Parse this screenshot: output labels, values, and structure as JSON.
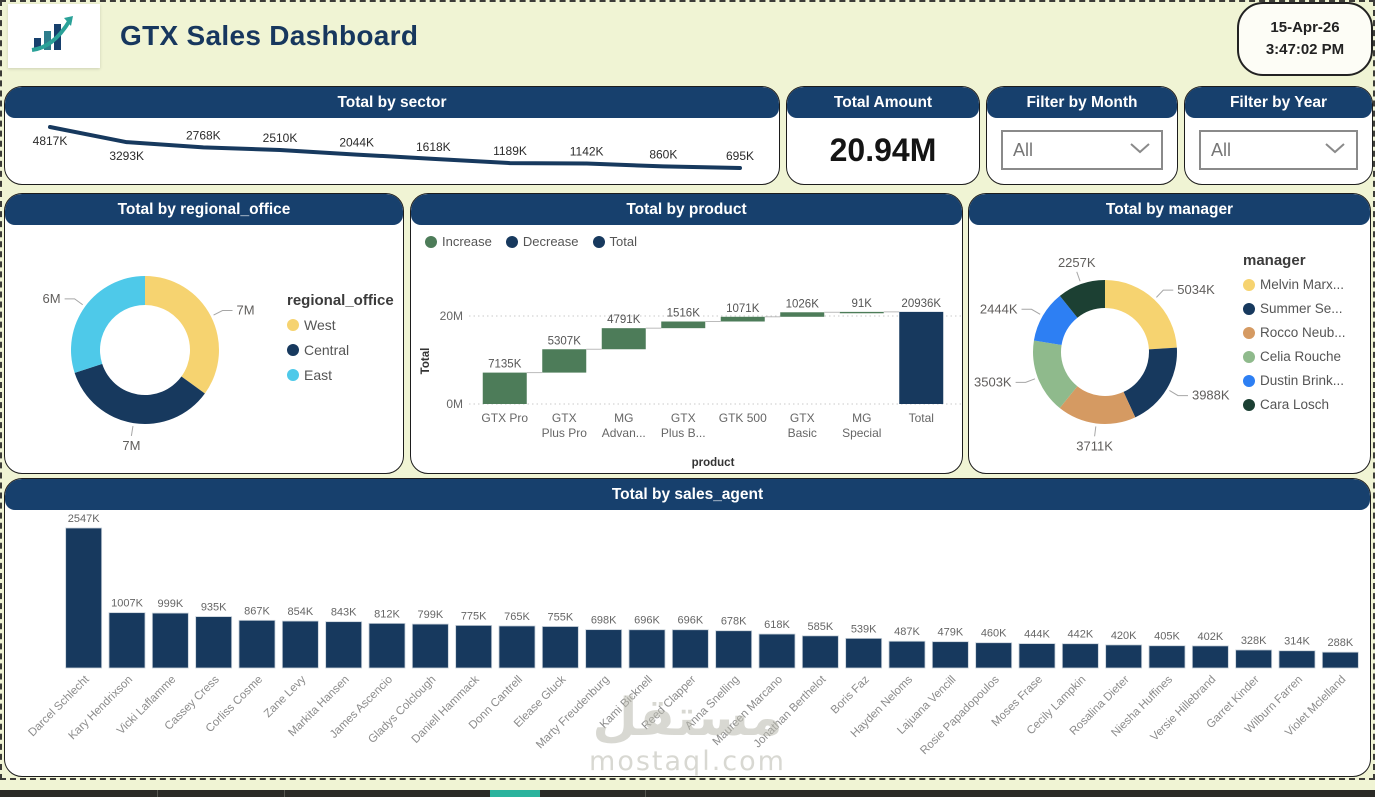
{
  "header": {
    "title": "GTX Sales Dashboard",
    "logo_icon": "trending-bar-chart-icon",
    "date": "15-Apr-26",
    "time": "3:47:02 PM"
  },
  "colors": {
    "page_bg": "#f0f4d4",
    "card_header_navy": "#17406d",
    "series_navy": "#17395e",
    "increase_green": "#4d7c59",
    "west_yellow": "#f6d370",
    "east_cyan": "#4ec9e9",
    "rocco_tan": "#d59a62",
    "celia_green": "#8fba8c",
    "dustin_blue": "#2d7ff3",
    "cara_darkgreen": "#1c4033",
    "taskbar_teal": "#2ab39d"
  },
  "cards": {
    "sector": {
      "title": "Total by sector"
    },
    "amount": {
      "title": "Total Amount",
      "value": "20.94M"
    },
    "month": {
      "title": "Filter by Month",
      "selected": "All"
    },
    "year": {
      "title": "Filter by Year",
      "selected": "All"
    },
    "regional": {
      "title": "Total by regional_office"
    },
    "product": {
      "title": "Total by product"
    },
    "manager": {
      "title": "Total by manager"
    },
    "agent": {
      "title": "Total by sales_agent"
    }
  },
  "watermark": {
    "arabic": "مستقل",
    "domain": "mostaql.com"
  },
  "chart_data": [
    {
      "id": "sector",
      "type": "line",
      "title": "Total by sector",
      "values": [
        4817,
        3293,
        2768,
        2510,
        2044,
        1618,
        1189,
        1142,
        860,
        695
      ],
      "labels": [
        "4817K",
        "3293K",
        "2768K",
        "2510K",
        "2044K",
        "1618K",
        "1189K",
        "1142K",
        "860K",
        "695K"
      ],
      "line_color": "#17395e",
      "grid": false,
      "axes_hidden": true
    },
    {
      "id": "regional",
      "type": "donut",
      "title": "Total by regional_office",
      "legend_title": "regional_office",
      "legend_position": "right",
      "segments": [
        {
          "label": "West",
          "value": 7,
          "display": "7M",
          "color": "#f6d370"
        },
        {
          "label": "Central",
          "value": 7,
          "display": "7M",
          "color": "#17395e"
        },
        {
          "label": "East",
          "value": 6,
          "display": "6M",
          "color": "#4ec9e9"
        }
      ]
    },
    {
      "id": "product",
      "type": "waterfall",
      "title": "Total by product",
      "legend": [
        {
          "label": "Increase",
          "color": "#4d7c59"
        },
        {
          "label": "Decrease",
          "color": "#17395e"
        },
        {
          "label": "Total",
          "color": "#17395e"
        }
      ],
      "categories": [
        [
          "GTX Pro"
        ],
        [
          "GTX",
          "Plus Pro"
        ],
        [
          "MG",
          "Advan..."
        ],
        [
          "GTX",
          "Plus B..."
        ],
        [
          "GTK 500"
        ],
        [
          "GTX",
          "Basic"
        ],
        [
          "MG",
          "Special"
        ],
        [
          "Total"
        ]
      ],
      "values": [
        7135,
        5307,
        4791,
        1516,
        1071,
        1026,
        91
      ],
      "total": 20936,
      "labels": [
        "7135K",
        "5307K",
        "4791K",
        "1516K",
        "1071K",
        "1026K",
        "91K",
        "20936K"
      ],
      "ylabel": "Total",
      "xlabel": "product",
      "yticks": [
        {
          "value": 0,
          "label": "0M"
        },
        {
          "value": 20000,
          "label": "20M"
        }
      ],
      "ylim": [
        0,
        22000
      ]
    },
    {
      "id": "manager",
      "type": "donut",
      "title": "Total by manager",
      "legend_title": "manager",
      "legend_position": "right",
      "segments": [
        {
          "label": "Melvin Marx...",
          "value": 5034,
          "display": "5034K",
          "color": "#f6d370"
        },
        {
          "label": "Summer Se...",
          "value": 3988,
          "display": "3988K",
          "color": "#17395e"
        },
        {
          "label": "Rocco Neub...",
          "value": 3711,
          "display": "3711K",
          "color": "#d59a62"
        },
        {
          "label": "Celia Rouche",
          "value": 3503,
          "display": "3503K",
          "color": "#8fba8c"
        },
        {
          "label": "Dustin Brink...",
          "value": 2444,
          "display": "2444K",
          "color": "#2d7ff3"
        },
        {
          "label": "Cara Losch",
          "value": 2257,
          "display": "2257K",
          "color": "#1c4033"
        }
      ]
    },
    {
      "id": "agent",
      "type": "bar",
      "title": "Total by sales_agent",
      "bar_color": "#17395e",
      "categories": [
        "Darcel Schlecht",
        "Kary Hendrixson",
        "Vicki Laflamme",
        "Cassey Cress",
        "Corliss Cosme",
        "Zane Levy",
        "Markita Hansen",
        "James Ascencio",
        "Gladys Colclough",
        "Daniell Hammack",
        "Donn Cantrell",
        "Elease Gluck",
        "Marty Freudenburg",
        "Kami Bicknell",
        "Reed Clapper",
        "Anna Snelling",
        "Maureen Marcano",
        "Jonathan Berthelot",
        "Boris Faz",
        "Hayden Neloms",
        "Lajuana Vencill",
        "Rosie Papadopoulos",
        "Moses Frase",
        "Cecily Lampkin",
        "Rosalina Dieter",
        "Niesha Huffines",
        "Versie Hillebrand",
        "Garret Kinder",
        "Wilburn Farren",
        "Violet Mclelland"
      ],
      "values": [
        2547,
        1007,
        999,
        935,
        867,
        854,
        843,
        812,
        799,
        775,
        765,
        755,
        698,
        696,
        696,
        678,
        618,
        585,
        539,
        487,
        479,
        460,
        444,
        442,
        420,
        405,
        402,
        328,
        314,
        288
      ],
      "labels": [
        "2547K",
        "1007K",
        "999K",
        "935K",
        "867K",
        "854K",
        "843K",
        "812K",
        "799K",
        "775K",
        "765K",
        "755K",
        "698K",
        "696K",
        "696K",
        "678K",
        "618K",
        "585K",
        "539K",
        "487K",
        "479K",
        "460K",
        "444K",
        "442K",
        "420K",
        "405K",
        "402K",
        "328K",
        "314K",
        "288K"
      ]
    }
  ]
}
